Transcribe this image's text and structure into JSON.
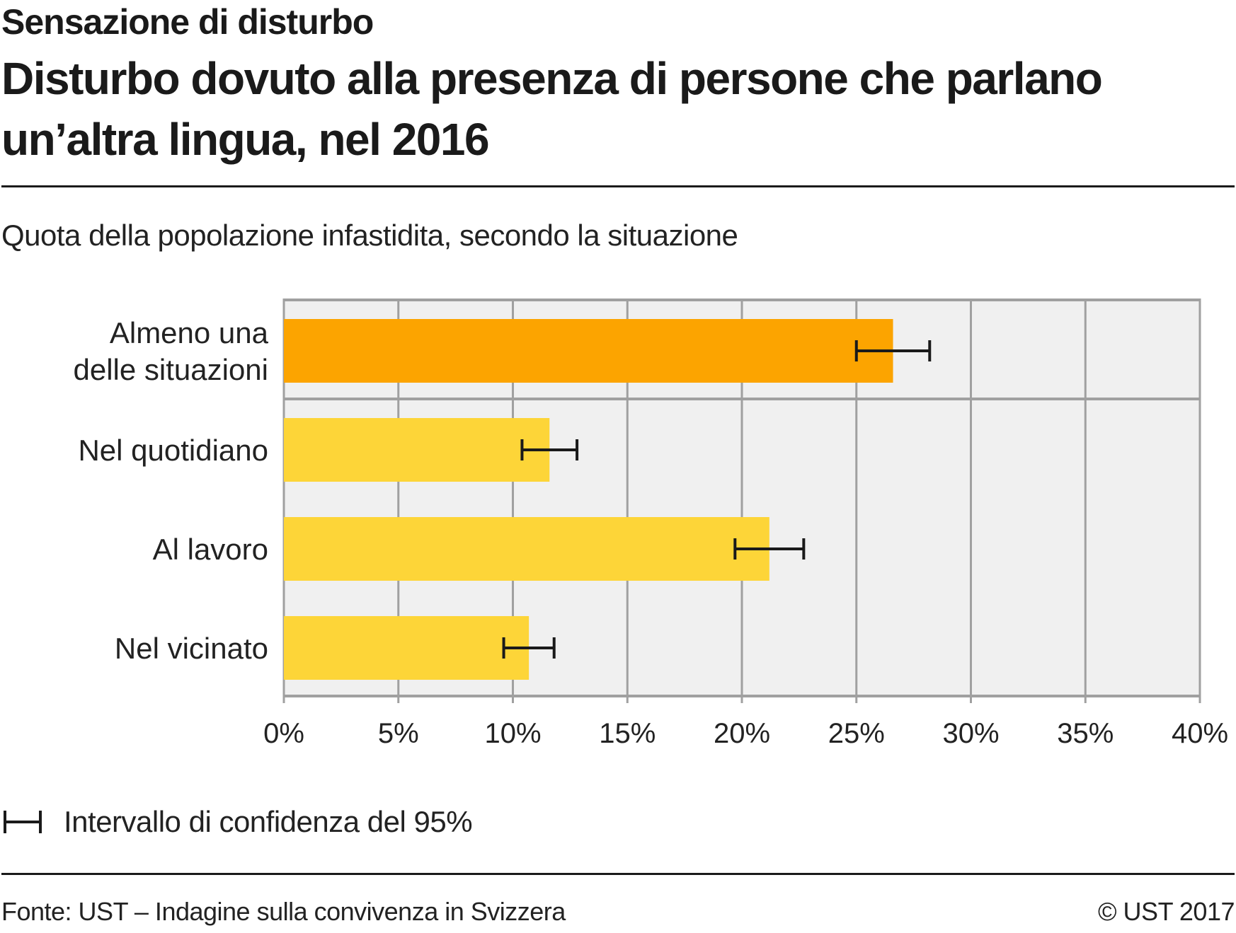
{
  "header": {
    "kicker": "Sensazione di disturbo",
    "title": "Disturbo dovuto alla presenza di persone che parlano un’altra lingua, nel 2016",
    "subtitle": "Quota della popolazione infastidita, secondo la situazione"
  },
  "legend": {
    "icon": "error-bar-icon",
    "label": "Intervallo di confidenza del 95%"
  },
  "footer": {
    "source": "Fonte: UST – Indagine sulla convivenza in Svizzera",
    "copyright": "© UST 2017"
  },
  "colors": {
    "highlight_bar": "#FCA400",
    "bar": "#FDD538",
    "plot_background": "#F0F0F0",
    "grid": "#A0A0A0",
    "error_bar": "#1A1A1A",
    "text": "#1A1A1A"
  },
  "chart_data": {
    "type": "bar",
    "orientation": "horizontal",
    "title": "Disturbo dovuto alla presenza di persone che parlano un’altra lingua, nel 2016",
    "subtitle": "Quota della popolazione infastidita, secondo la situazione",
    "xlabel": "",
    "ylabel": "",
    "categories": [
      [
        "Almeno una",
        "delle situazioni"
      ],
      [
        "Nel quotidiano"
      ],
      [
        "Al lavoro"
      ],
      [
        "Nel vicinato"
      ]
    ],
    "values": [
      26.6,
      11.6,
      21.2,
      10.7
    ],
    "ci_low": [
      25.0,
      10.4,
      19.7,
      9.6
    ],
    "ci_high": [
      28.2,
      12.8,
      22.7,
      11.8
    ],
    "highlight_index": 0,
    "unit": "%",
    "xlim": [
      0,
      40
    ],
    "xticks": [
      0,
      5,
      10,
      15,
      20,
      25,
      30,
      35,
      40
    ],
    "xtick_labels": [
      "0%",
      "5%",
      "10%",
      "15%",
      "20%",
      "25%",
      "30%",
      "35%",
      "40%"
    ],
    "grid": true,
    "legend": "bottom-left"
  }
}
